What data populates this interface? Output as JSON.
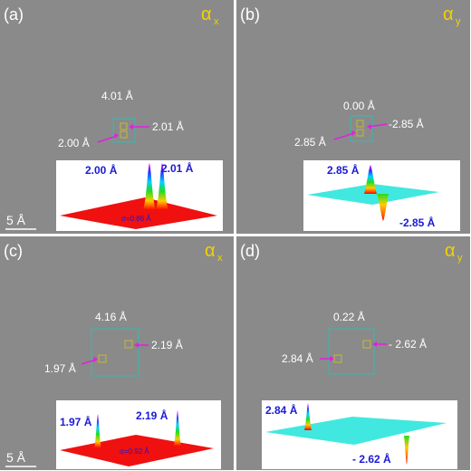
{
  "panels": {
    "a": {
      "tag": "(a)",
      "alpha": "α",
      "sub": "x",
      "distance": "4.01 Å",
      "left_value": "2.00 Å",
      "right_value": "2.01 Å",
      "inset_left": "2.00 Å",
      "inset_right": "2.01 Å",
      "sigma": "σ=0.86 Å",
      "scalebar": "5 Å"
    },
    "b": {
      "tag": "(b)",
      "alpha": "α",
      "sub": "y",
      "distance": "0.00 Å",
      "left_value": "2.85 Å",
      "right_value": "-2.85 Å",
      "inset_left": "2.85 Å",
      "inset_right": "-2.85 Å"
    },
    "c": {
      "tag": "(c)",
      "alpha": "α",
      "sub": "x",
      "distance": "4.16 Å",
      "left_value": "1.97 Å",
      "right_value": "2.19 Å",
      "inset_left": "1.97 Å",
      "inset_right": "2.19 Å",
      "sigma": "σ=0.92 Å",
      "scalebar": "5 Å"
    },
    "d": {
      "tag": "(d)",
      "alpha": "α",
      "sub": "y",
      "distance": "0.22 Å",
      "left_value": "2.84 Å",
      "right_value": "- 2.62 Å",
      "inset_left": "2.84 Å",
      "inset_right": "- 2.62 Å"
    }
  },
  "colors": {
    "background": "#8a8a8a",
    "label_yellow": "#f2d200",
    "arrow_magenta": "#e020e0",
    "box_cyan": "#38b8b0",
    "inset_blue": "#1a1ad6",
    "plane_red": "#f01010",
    "plane_cyan": "#40e8e0"
  }
}
